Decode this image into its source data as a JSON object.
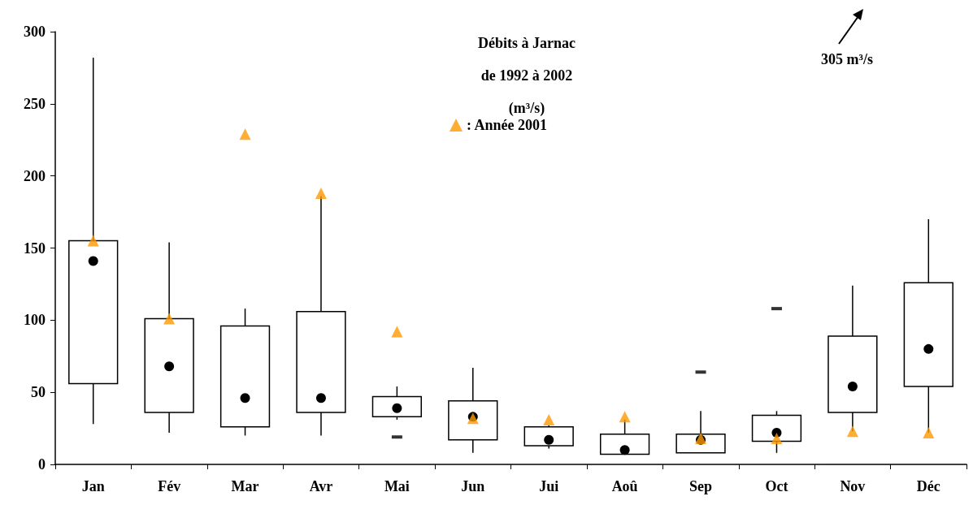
{
  "chart_data": {
    "type": "box",
    "title": "Débits à Jarnac\nde 1992 à 2002\n(m³/s)",
    "categories": [
      "Jan",
      "Fév",
      "Mar",
      "Avr",
      "Mai",
      "Jun",
      "Jui",
      "Aoû",
      "Sep",
      "Oct",
      "Nov",
      "Déc"
    ],
    "boxes": [
      {
        "low": 28,
        "q1": 56,
        "median": 141,
        "q3": 155,
        "high": 282
      },
      {
        "low": 22,
        "q1": 36,
        "median": 68,
        "q3": 101,
        "high": 154
      },
      {
        "low": 20,
        "q1": 26,
        "median": 46,
        "q3": 96,
        "high": 108
      },
      {
        "low": 20,
        "q1": 36,
        "median": 46,
        "q3": 106,
        "high": 186
      },
      {
        "low": 31,
        "q1": 33,
        "median": 39,
        "q3": 47,
        "high": 54,
        "outliers": [
          19
        ]
      },
      {
        "low": 8,
        "q1": 17,
        "median": 33,
        "q3": 44,
        "high": 67
      },
      {
        "low": 11,
        "q1": 13,
        "median": 17,
        "q3": 26,
        "high": 27
      },
      {
        "low": 7,
        "q1": 7,
        "median": 10,
        "q3": 21,
        "high": 31
      },
      {
        "low": 8,
        "q1": 8,
        "median": 17,
        "q3": 21,
        "high": 37,
        "outliers": [
          64
        ]
      },
      {
        "low": 8,
        "q1": 16,
        "median": 22,
        "q3": 34,
        "high": 37,
        "outliers": [
          108
        ]
      },
      {
        "low": 23,
        "q1": 36,
        "median": 54,
        "q3": 89,
        "high": 124
      },
      {
        "low": 22,
        "q1": 54,
        "median": 80,
        "q3": 126,
        "high": 170
      }
    ],
    "series": [
      {
        "type": "scatter",
        "name": ": Année 2001",
        "color": "#ff9900",
        "marker": "triangle",
        "x": [
          "Jan",
          "Fév",
          "Mar",
          "Avr",
          "Mai",
          "Jun",
          "Jui",
          "Aoû",
          "Sep",
          "Oct",
          "Nov",
          "Déc"
        ],
        "values": [
          155,
          101,
          229,
          188,
          92,
          32,
          31,
          33,
          18,
          18,
          23,
          22
        ]
      }
    ],
    "ylim": [
      0,
      300
    ],
    "yticks": [
      0,
      50,
      100,
      150,
      200,
      250,
      300
    ],
    "grid": false,
    "legend": "top",
    "annotations": [
      "305 m³/s"
    ]
  }
}
